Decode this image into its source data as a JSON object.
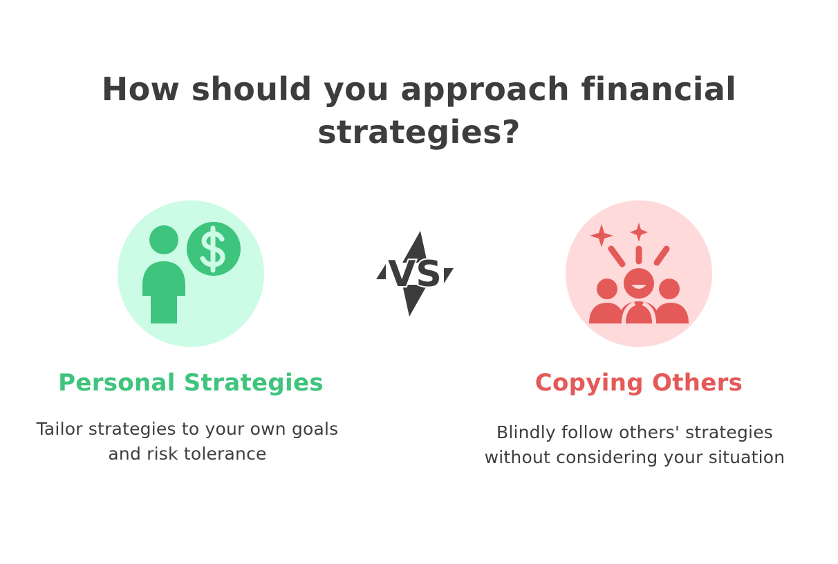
{
  "title": "How should you approach financial strategies?",
  "colors": {
    "left_accent": "#3ec47d",
    "left_bg": "#ccfbe6",
    "right_accent": "#e45a58",
    "right_bg": "#ffdadb",
    "vs": "#3c3c3c"
  },
  "vs_label": "VS",
  "left": {
    "icon": "person-with-dollar-icon",
    "heading": "Personal Strategies",
    "description": "Tailor strategies to your own goals and risk tolerance"
  },
  "right": {
    "icon": "excited-crowd-icon",
    "heading": "Copying Others",
    "description": "Blindly follow others' strategies without considering your situation"
  }
}
